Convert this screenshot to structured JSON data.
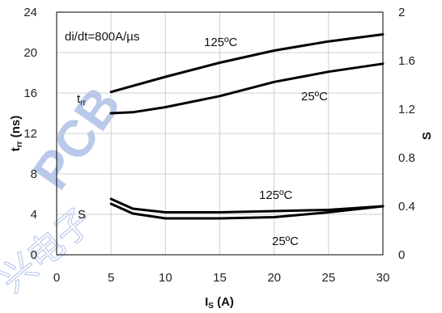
{
  "chart_data": {
    "type": "line",
    "xlabel": "I",
    "xlabel_sub": "S",
    "xlabel_unit": " (A)",
    "ylabel": "t",
    "ylabel_sub": "rr",
    "ylabel_unit": " (ns)",
    "y2label": "S",
    "xlim": [
      0,
      30
    ],
    "ylim": [
      0,
      24
    ],
    "y2lim": [
      0,
      2
    ],
    "x_ticks": [
      0,
      5,
      10,
      15,
      20,
      25,
      30
    ],
    "y_ticks": [
      0,
      4,
      8,
      12,
      16,
      20,
      24
    ],
    "y2_ticks": [
      0,
      0.4,
      0.8,
      1.2,
      1.6,
      2
    ],
    "y2_tick_labels": [
      "0",
      "0.4",
      "0.8",
      "1.2",
      "1.6",
      "2"
    ],
    "grid": true,
    "annotations": {
      "condition": "di/dt=800A/µs",
      "trr_group_base": "t",
      "trr_group_sub": "rr",
      "s_group": "S",
      "trr_125": "125ºC",
      "trr_25": "25ºC",
      "s_125": "125ºC",
      "s_25": "25ºC"
    },
    "series": [
      {
        "axis": "left",
        "color": "#000000",
        "x": [
          5,
          10,
          15,
          20,
          25,
          30
        ],
        "y": [
          16.1,
          17.6,
          19.0,
          20.2,
          21.1,
          21.8
        ]
      },
      {
        "axis": "left",
        "color": "#000000",
        "x": [
          5,
          7,
          10,
          15,
          20,
          25,
          30
        ],
        "y": [
          14.0,
          14.1,
          14.6,
          15.7,
          17.1,
          18.1,
          18.9
        ]
      },
      {
        "axis": "right",
        "color": "#000000",
        "x": [
          5,
          7,
          10,
          15,
          20,
          25,
          30
        ],
        "y": [
          0.46,
          0.38,
          0.35,
          0.35,
          0.36,
          0.37,
          0.4
        ]
      },
      {
        "axis": "right",
        "color": "#000000",
        "x": [
          5,
          7,
          10,
          15,
          20,
          25,
          30
        ],
        "y": [
          0.42,
          0.34,
          0.3,
          0.3,
          0.31,
          0.35,
          0.4
        ]
      }
    ]
  }
}
